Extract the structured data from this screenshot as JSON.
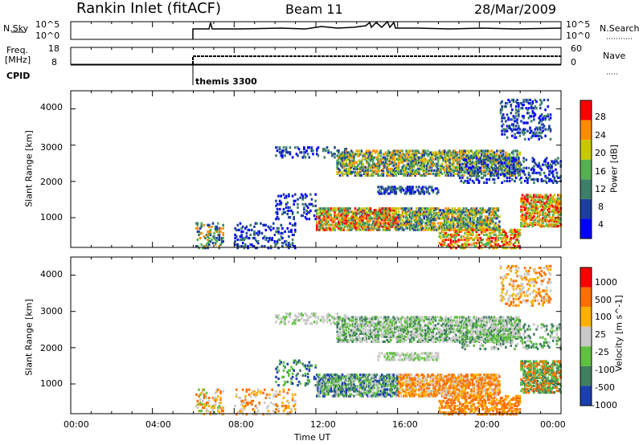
{
  "header": {
    "station": "Rankin Inlet (fitACF)",
    "beam": "Beam 11",
    "date": "28/Mar/2009"
  },
  "noise_panel": {
    "left_label": "N.Sky",
    "left_ticks": [
      "10^5",
      "10^0"
    ],
    "right_ticks": [
      "10^5",
      "10^0"
    ],
    "right_label": "N.Search"
  },
  "freq_panel": {
    "left_label_1": "Freq.",
    "left_label_2": "[MHz]",
    "left_ticks": [
      "18",
      "8"
    ],
    "right_ticks": [
      "60",
      "0"
    ],
    "right_label": "Nave"
  },
  "cpid": {
    "label": "CPID",
    "mode_text": "themis 3300"
  },
  "chart_data": [
    {
      "type": "heatmap",
      "name": "power",
      "ylabel": "Slant Range [km]",
      "y_ticks": [
        "4000",
        "3000",
        "2000",
        "1000"
      ],
      "colorbar_label": "Power [dB]",
      "colorbar_ticks": [
        "28",
        "24",
        "20",
        "16",
        "12",
        "8",
        "4"
      ],
      "colors": [
        "#0000ff",
        "#1c3f9e",
        "#3f7f6a",
        "#55b050",
        "#c8c800",
        "#ff8c00",
        "#ff0000"
      ]
    },
    {
      "type": "heatmap",
      "name": "velocity",
      "ylabel": "Slant Range [km]",
      "y_ticks": [
        "4000",
        "3000",
        "2000",
        "1000"
      ],
      "colorbar_label": "Velocity [m s^-1]",
      "colorbar_ticks": [
        "1000",
        "500",
        "100",
        "25",
        "-25",
        "-100",
        "-500",
        "-1000"
      ],
      "colors": [
        "#1c3fb0",
        "#3f7f60",
        "#60c040",
        "#c8c8c8",
        "#ffb000",
        "#ff7000",
        "#ff0000"
      ]
    }
  ],
  "x_axis": {
    "ticks": [
      "00:00",
      "04:00",
      "08:00",
      "12:00",
      "16:00",
      "20:00",
      "00:00"
    ],
    "label": "Time UT"
  }
}
